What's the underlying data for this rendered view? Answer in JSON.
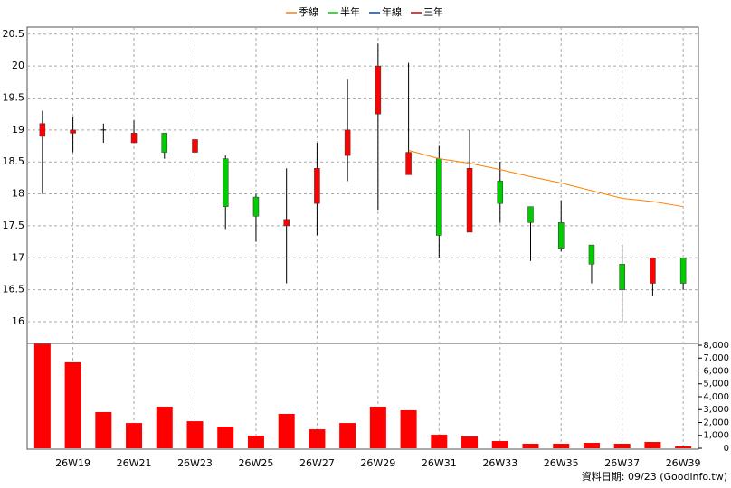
{
  "chart_data": {
    "type": "candlestick",
    "categories": [
      null,
      "26W19",
      null,
      "26W21",
      null,
      "26W23",
      null,
      "26W25",
      null,
      "26W27",
      null,
      "26W29",
      null,
      "26W31",
      null,
      "26W33",
      null,
      "26W35",
      null,
      "26W37",
      null,
      "26W39"
    ],
    "open": [
      18.9,
      18.95,
      19.0,
      18.8,
      18.95,
      18.65,
      18.55,
      17.95,
      17.5,
      17.85,
      18.6,
      19.25,
      18.3,
      18.55,
      17.4,
      18.2,
      17.8,
      17.55,
      17.2,
      16.9,
      16.6,
      17.0
    ],
    "high": [
      19.3,
      19.2,
      19.1,
      19.15,
      18.95,
      19.1,
      18.6,
      18.0,
      18.4,
      18.8,
      19.8,
      20.35,
      20.05,
      18.75,
      19.0,
      18.5,
      17.8,
      17.9,
      17.2,
      17.2,
      17.0,
      17.0
    ],
    "low": [
      18.0,
      18.65,
      18.8,
      18.8,
      18.55,
      18.55,
      17.45,
      17.25,
      16.6,
      17.35,
      18.2,
      17.75,
      18.3,
      17.0,
      17.4,
      17.55,
      16.95,
      17.1,
      16.6,
      16.0,
      16.4,
      16.5
    ],
    "close": [
      19.1,
      19.0,
      19.0,
      18.95,
      18.65,
      18.85,
      17.8,
      17.65,
      17.6,
      18.4,
      19.0,
      20.0,
      18.65,
      17.35,
      18.4,
      17.85,
      17.55,
      17.15,
      16.9,
      16.5,
      17.0,
      16.6
    ],
    "up_color": "#ff0000",
    "down_color": "#00cc00",
    "flat_color": "#000000",
    "ylim": [
      15.66,
      20.61
    ],
    "yticks": [
      16,
      16.5,
      17,
      17.5,
      18,
      18.5,
      19,
      19.5,
      20,
      20.5
    ],
    "grid": true,
    "series": [
      {
        "name": "季線",
        "color": "#ff8000",
        "values": [
          null,
          null,
          null,
          null,
          null,
          null,
          null,
          null,
          null,
          null,
          null,
          null,
          18.68,
          18.55,
          18.48,
          18.38,
          18.27,
          18.17,
          18.05,
          17.93,
          17.88,
          17.8
        ]
      },
      {
        "name": "半年",
        "color": "#00cc00",
        "values": [
          null,
          null,
          null,
          null,
          null,
          null,
          null,
          null,
          null,
          null,
          null,
          null,
          null,
          null,
          null,
          null,
          null,
          null,
          null,
          null,
          null,
          null
        ]
      },
      {
        "name": "年線",
        "color": "#0044cc",
        "values": [
          null,
          null,
          null,
          null,
          null,
          null,
          null,
          null,
          null,
          null,
          null,
          null,
          null,
          null,
          null,
          null,
          null,
          null,
          null,
          null,
          null,
          null
        ]
      },
      {
        "name": "三年",
        "color": "#cc0000",
        "values": [
          null,
          null,
          null,
          null,
          null,
          null,
          null,
          null,
          null,
          null,
          null,
          null,
          null,
          null,
          null,
          null,
          null,
          null,
          null,
          null,
          null,
          null
        ]
      }
    ],
    "volume": [
      8100,
      6670,
      2810,
      1960,
      3230,
      2100,
      1680,
      980,
      2670,
      1470,
      1960,
      3230,
      2950,
      1050,
      910,
      560,
      350,
      350,
      420,
      350,
      490,
      140
    ],
    "volume_color": "#ff0000",
    "y2lim": [
      0,
      8140
    ],
    "y2ticks": [
      0,
      {
        "value": 1000,
        "label": "1,000"
      },
      {
        "value": 2000,
        "label": "2,000"
      },
      {
        "value": 3000,
        "label": "3,000"
      },
      {
        "value": 4000,
        "label": "4,000"
      },
      {
        "value": 5000,
        "label": "5,000"
      },
      {
        "value": 6000,
        "label": "6,000"
      },
      {
        "value": 7000,
        "label": "7,000"
      },
      {
        "value": 8000,
        "label": "8,000"
      }
    ],
    "source": "資料日期: 09/23 (Goodinfo.tw)"
  }
}
